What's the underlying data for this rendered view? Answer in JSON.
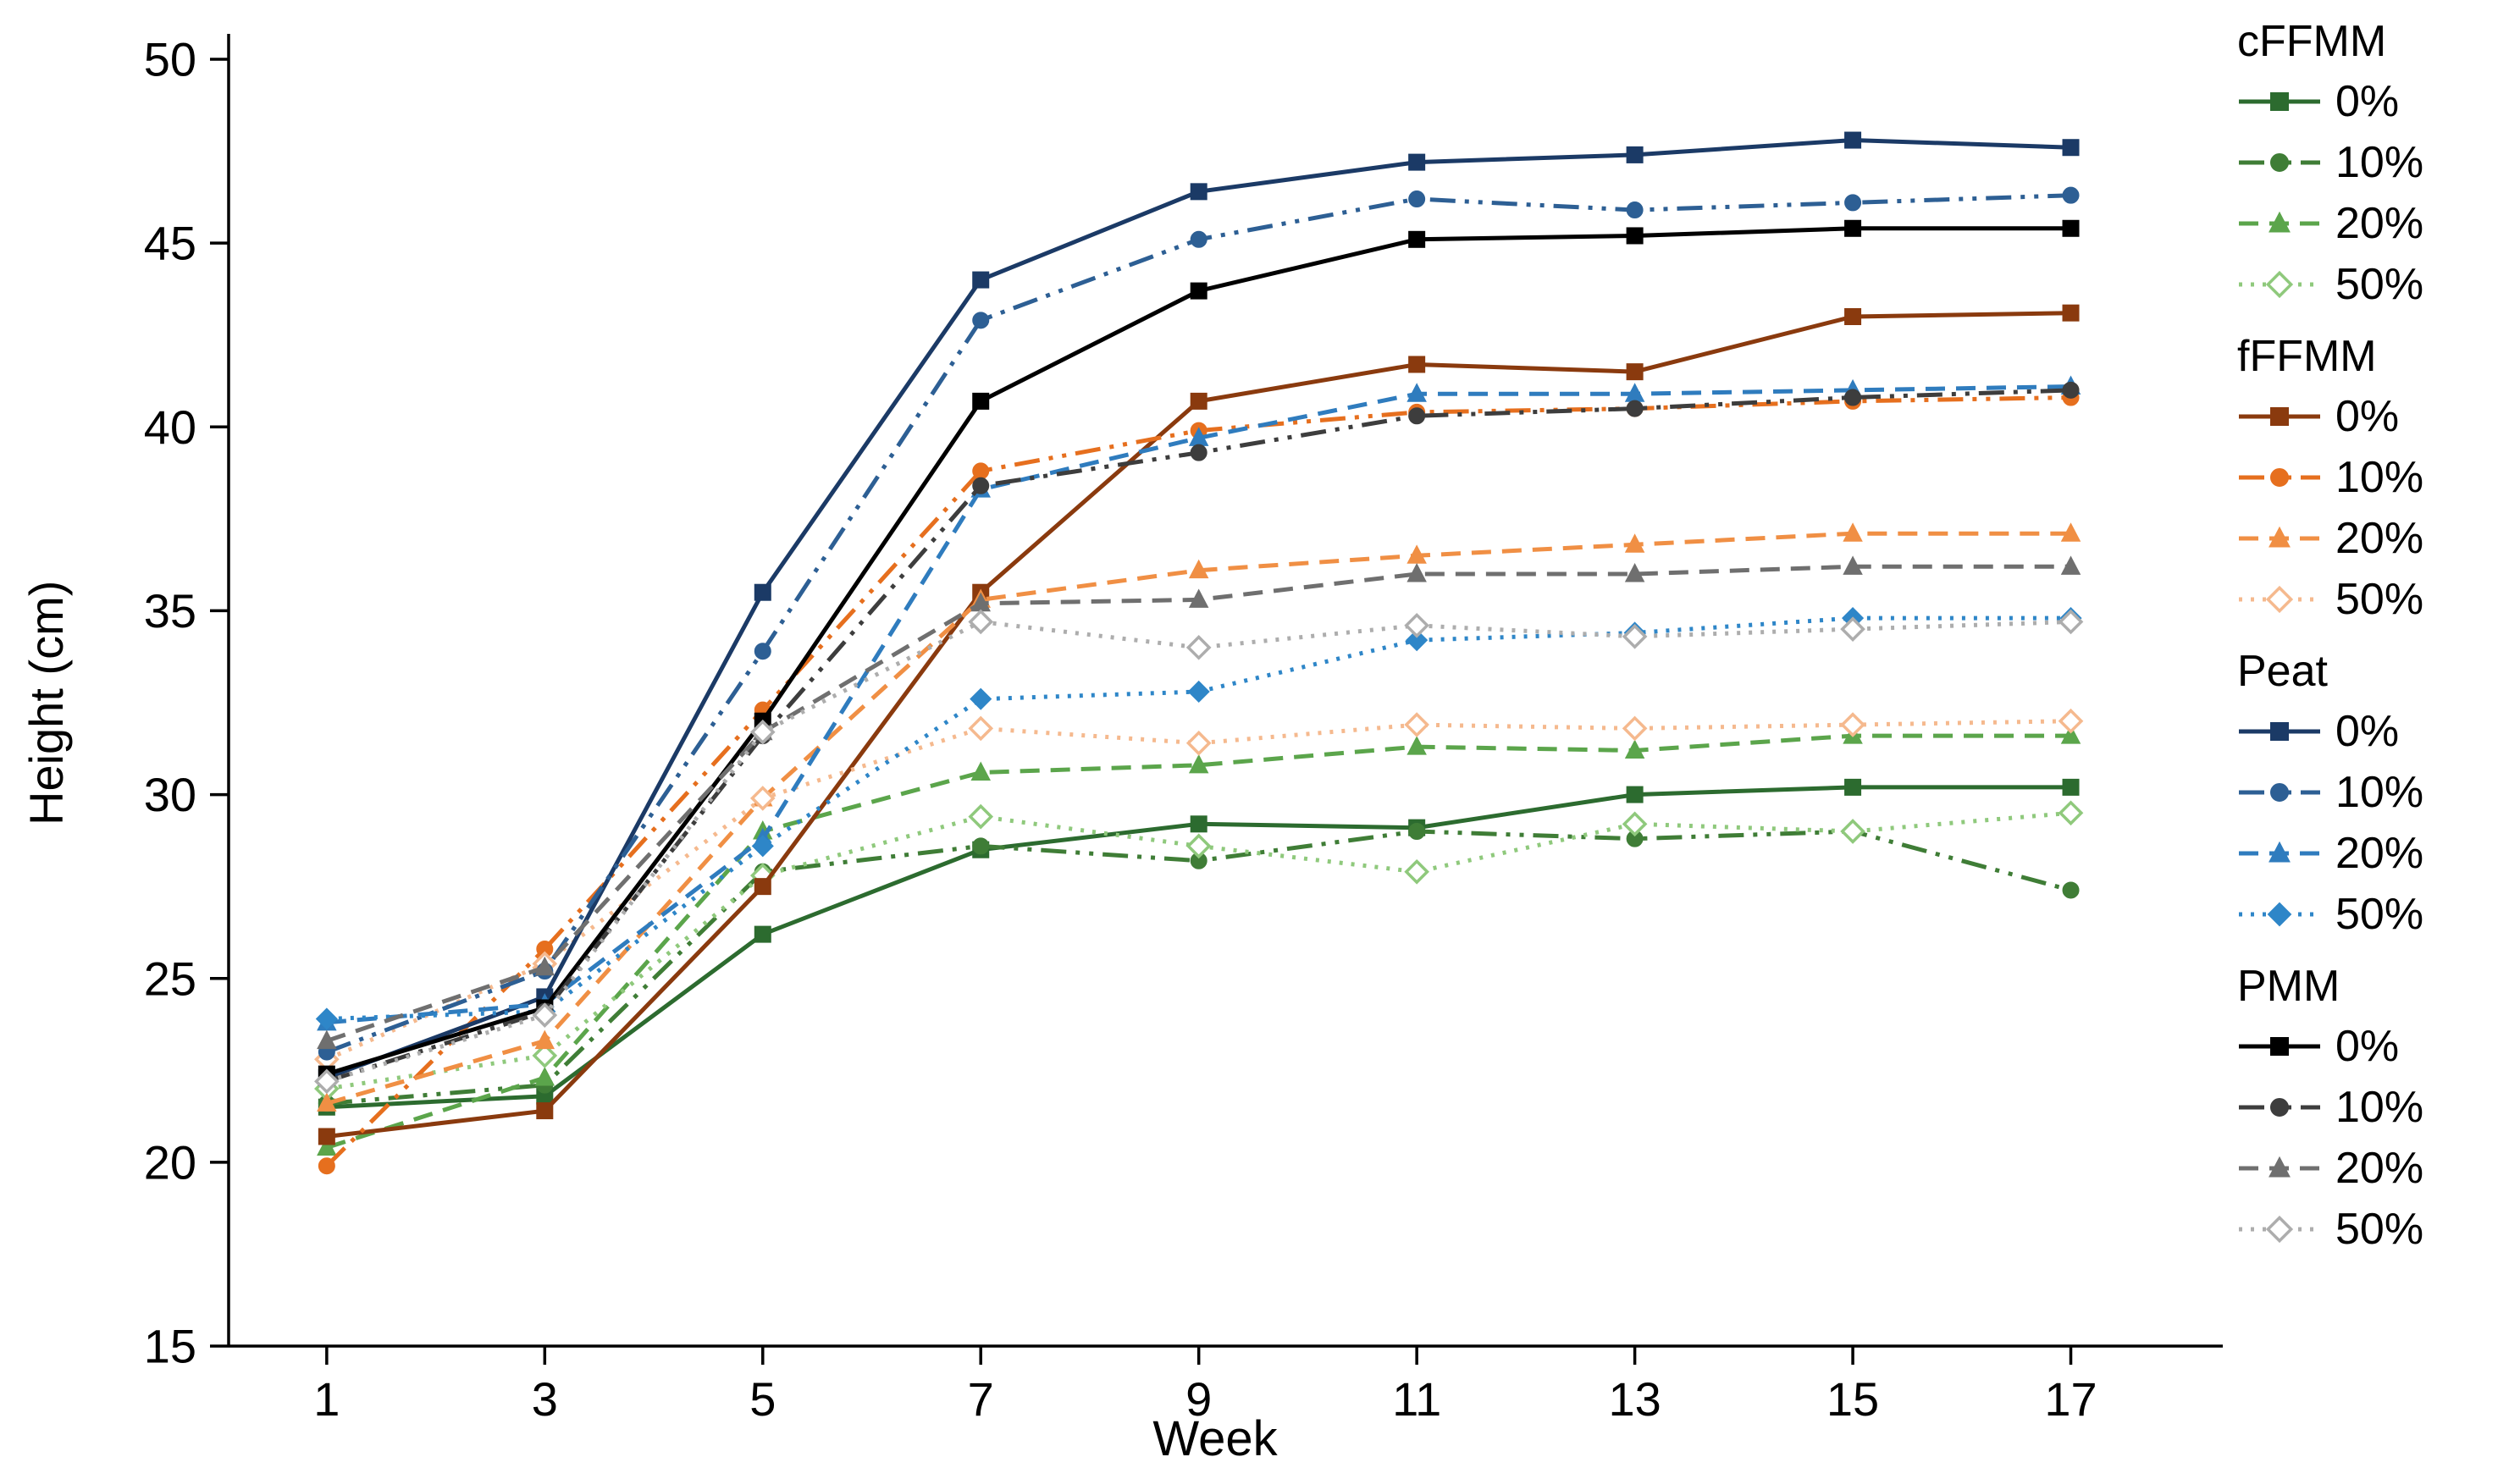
{
  "chart_data": {
    "type": "line",
    "title": "",
    "xlabel": "Week",
    "ylabel": "Height (cm)",
    "x": [
      1,
      3,
      5,
      7,
      9,
      11,
      13,
      15,
      17
    ],
    "xticks": [
      1,
      3,
      5,
      7,
      9,
      11,
      13,
      15,
      17
    ],
    "yticks": [
      15,
      20,
      25,
      30,
      35,
      40,
      45,
      50
    ],
    "xlim": [
      0.1,
      18.2
    ],
    "ylim": [
      15,
      50
    ],
    "grid": false,
    "legend_position": "right",
    "groups": [
      {
        "name": "cFFMM",
        "series": [
          {
            "label": "0%",
            "color": "#2c6b2f",
            "dash": "solid",
            "marker": "square",
            "marker_open": false,
            "values": [
              21.5,
              21.8,
              26.2,
              28.5,
              29.2,
              29.1,
              30.0,
              30.2,
              30.2
            ]
          },
          {
            "label": "10%",
            "color": "#3f7d36",
            "dash": "dashdotdot",
            "marker": "circle",
            "marker_open": false,
            "values": [
              21.6,
              22.1,
              27.9,
              28.6,
              28.2,
              29.0,
              28.8,
              29.0,
              27.4
            ]
          },
          {
            "label": "20%",
            "color": "#5ba54b",
            "dash": "dashed",
            "marker": "triangle",
            "marker_open": false,
            "values": [
              20.4,
              22.3,
              29.0,
              30.6,
              30.8,
              31.3,
              31.2,
              31.6,
              31.6
            ]
          },
          {
            "label": "50%",
            "color": "#8fc97c",
            "dash": "dotted",
            "marker": "diamond",
            "marker_open": true,
            "values": [
              22.0,
              22.9,
              27.8,
              29.4,
              28.6,
              27.9,
              29.2,
              29.0,
              29.5
            ]
          }
        ]
      },
      {
        "name": "fFFMM",
        "series": [
          {
            "label": "0%",
            "color": "#8a3a0e",
            "dash": "solid",
            "marker": "square",
            "marker_open": false,
            "values": [
              20.7,
              21.4,
              27.5,
              35.5,
              40.7,
              41.7,
              41.5,
              43.0,
              43.1
            ]
          },
          {
            "label": "10%",
            "color": "#e66f1e",
            "dash": "dashdotdot",
            "marker": "circle",
            "marker_open": false,
            "values": [
              19.9,
              25.8,
              32.3,
              38.8,
              39.9,
              40.4,
              40.5,
              40.7,
              40.8
            ]
          },
          {
            "label": "20%",
            "color": "#f08f44",
            "dash": "dashed",
            "marker": "triangle",
            "marker_open": false,
            "values": [
              21.6,
              23.3,
              29.9,
              35.3,
              36.1,
              36.5,
              36.8,
              37.1,
              37.1
            ]
          },
          {
            "label": "50%",
            "color": "#f5b98e",
            "dash": "dotted",
            "marker": "diamond",
            "marker_open": true,
            "values": [
              22.8,
              25.4,
              29.9,
              31.8,
              31.4,
              31.9,
              31.8,
              31.9,
              32.0
            ]
          }
        ]
      },
      {
        "name": "Peat",
        "series": [
          {
            "label": "0%",
            "color": "#1b3a66",
            "dash": "solid",
            "marker": "square",
            "marker_open": false,
            "values": [
              22.3,
              24.5,
              35.5,
              44.0,
              46.4,
              47.2,
              47.4,
              47.8,
              47.6
            ]
          },
          {
            "label": "10%",
            "color": "#2d5f94",
            "dash": "dashdotdot",
            "marker": "circle",
            "marker_open": false,
            "values": [
              23.0,
              25.2,
              33.9,
              42.9,
              45.1,
              46.2,
              45.9,
              46.1,
              46.3
            ]
          },
          {
            "label": "20%",
            "color": "#2f7cbe",
            "dash": "dashed",
            "marker": "triangle",
            "marker_open": false,
            "values": [
              23.8,
              24.3,
              28.8,
              38.3,
              39.7,
              40.9,
              40.9,
              41.0,
              41.1
            ]
          },
          {
            "label": "50%",
            "color": "#2e86c8",
            "dash": "dotted",
            "marker": "diamond",
            "marker_open": false,
            "values": [
              23.9,
              24.1,
              28.6,
              32.6,
              32.8,
              34.2,
              34.4,
              34.8,
              34.8
            ]
          }
        ]
      },
      {
        "name": "PMM",
        "series": [
          {
            "label": "0%",
            "color": "#000000",
            "dash": "solid",
            "marker": "square",
            "marker_open": false,
            "values": [
              22.4,
              24.2,
              32.0,
              40.7,
              43.7,
              45.1,
              45.2,
              45.4,
              45.4
            ]
          },
          {
            "label": "10%",
            "color": "#3d3d3d",
            "dash": "dashdotdot",
            "marker": "circle",
            "marker_open": false,
            "values": [
              22.2,
              24.1,
              31.6,
              38.4,
              39.3,
              40.3,
              40.5,
              40.8,
              41.0
            ]
          },
          {
            "label": "20%",
            "color": "#6f6f6f",
            "dash": "dashed",
            "marker": "triangle",
            "marker_open": false,
            "values": [
              23.3,
              25.3,
              31.7,
              35.2,
              35.3,
              36.0,
              36.0,
              36.2,
              36.2
            ]
          },
          {
            "label": "50%",
            "color": "#adadad",
            "dash": "dotted",
            "marker": "diamond",
            "marker_open": true,
            "values": [
              22.2,
              24.0,
              31.7,
              34.7,
              34.0,
              34.6,
              34.3,
              34.5,
              34.7
            ]
          }
        ]
      }
    ]
  }
}
